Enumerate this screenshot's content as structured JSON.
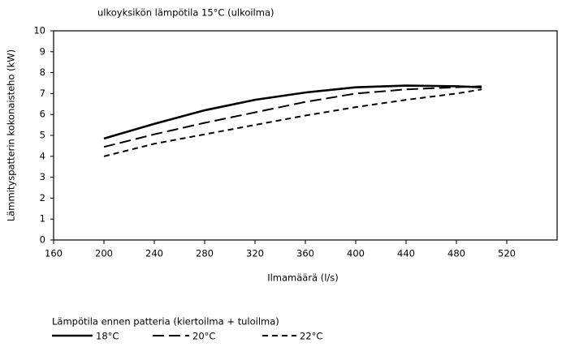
{
  "chart_data": {
    "type": "line",
    "title": "ulkoyksikön lämpötila 15°C (ulkoilma)",
    "x_label": "Ilmamäärä (l/s)",
    "y_label": "Lämmityspatterin kokonaisteho (kW)",
    "legend_title": "Lämpötila ennen patteria (kiertoilma + tuloilma)",
    "x": [
      200,
      240,
      280,
      320,
      360,
      400,
      440,
      480,
      500
    ],
    "series": [
      {
        "name": "18°C",
        "color": "#000000",
        "line_style": "solid",
        "values": [
          4.85,
          5.55,
          6.2,
          6.7,
          7.05,
          7.3,
          7.38,
          7.35,
          7.3
        ]
      },
      {
        "name": "20°C",
        "color": "#000000",
        "line_style": "long-dash",
        "values": [
          4.45,
          5.05,
          5.6,
          6.1,
          6.6,
          7.0,
          7.2,
          7.3,
          7.35
        ]
      },
      {
        "name": "22°C",
        "color": "#000000",
        "line_style": "short-dash",
        "values": [
          4.0,
          4.6,
          5.05,
          5.5,
          5.95,
          6.35,
          6.7,
          7.0,
          7.2
        ]
      }
    ],
    "xlim": [
      160,
      560
    ],
    "xticks": [
      160,
      200,
      240,
      280,
      320,
      360,
      400,
      440,
      480,
      520
    ],
    "ylim": [
      0,
      10
    ],
    "yticks": [
      0,
      1,
      2,
      3,
      4,
      5,
      6,
      7,
      8,
      9,
      10
    ],
    "grid": false,
    "legend": "bottom-left"
  }
}
